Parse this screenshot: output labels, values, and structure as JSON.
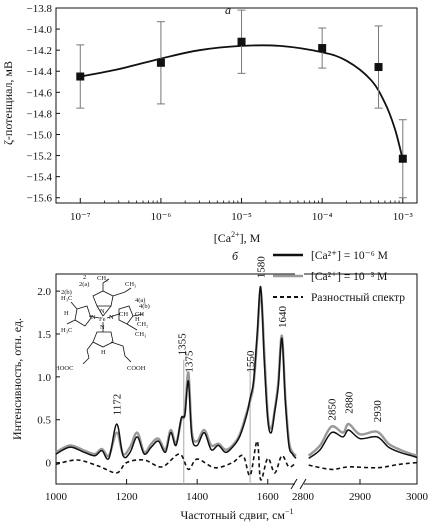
{
  "chart_data": [
    {
      "panel": "a",
      "type": "scatter",
      "xlabel": "[Ca2+], M",
      "ylabel": "ζ-потенциал, мВ",
      "xscale": "log",
      "xlim": [
        5e-08,
        0.0015
      ],
      "ylim": [
        -15.65,
        -13.8
      ],
      "x_ticks": [
        "10⁻⁷",
        "10⁻⁶",
        "10⁻⁵",
        "10⁻⁴",
        "10⁻³"
      ],
      "y_ticks": [
        "-13.8",
        "-14.0",
        "-14.2",
        "-14.4",
        "-14.6",
        "-14.8",
        "-15.0",
        "-15.2",
        "-15.4",
        "-15.6"
      ],
      "points": [
        {
          "x": 1e-07,
          "y": -14.45,
          "err": 0.3
        },
        {
          "x": 1e-06,
          "y": -14.32,
          "err": 0.39
        },
        {
          "x": 1e-05,
          "y": -14.12,
          "err": 0.3
        },
        {
          "x": 0.0001,
          "y": -14.18,
          "err": 0.19
        },
        {
          "x": 0.0005,
          "y": -14.36,
          "err": 0.39
        },
        {
          "x": 0.001,
          "y": -15.23,
          "err": 0.37
        }
      ],
      "fit_curve": {
        "x": [
          1e-07,
          3e-07,
          1e-06,
          3e-06,
          1e-05,
          3e-05,
          0.0001,
          0.0002,
          0.0004,
          0.0006,
          0.0008,
          0.001
        ],
        "y": [
          -14.45,
          -14.38,
          -14.28,
          -14.2,
          -14.16,
          -14.16,
          -14.22,
          -14.3,
          -14.48,
          -14.7,
          -14.95,
          -15.24
        ]
      }
    },
    {
      "panel": "б",
      "type": "line",
      "xlabel": "Частотный сдвиг, см⁻¹",
      "ylabel": "Интенсивность, отн. ед.",
      "ylim": [
        -0.25,
        2.2
      ],
      "x_ticks_left": [
        "1000",
        "1200",
        "1400",
        "1600",
        "2800"
      ],
      "x_ticks_right": [
        "2900",
        "3000"
      ],
      "y_ticks": [
        "0",
        "0.5",
        "1.0",
        "1.5",
        "2.0"
      ],
      "series": [
        {
          "name": "[Ca²⁺] = 10⁻⁶ M",
          "color": "#111111",
          "x_left": [
            1000,
            1040,
            1080,
            1110,
            1130,
            1150,
            1172,
            1190,
            1210,
            1230,
            1250,
            1270,
            1290,
            1310,
            1325,
            1340,
            1355,
            1365,
            1375,
            1385,
            1400,
            1420,
            1440,
            1460,
            1480,
            1500,
            1520,
            1540,
            1550,
            1560,
            1570,
            1580,
            1590,
            1600,
            1610,
            1620,
            1630,
            1640,
            1650,
            1660,
            1670,
            1680
          ],
          "y_left": [
            0.1,
            0.18,
            0.12,
            0.08,
            0.14,
            0.05,
            0.45,
            0.08,
            0.12,
            0.3,
            0.1,
            0.18,
            0.25,
            0.12,
            0.35,
            0.2,
            0.52,
            0.55,
            0.95,
            0.3,
            0.2,
            0.35,
            0.15,
            0.2,
            0.12,
            0.18,
            0.3,
            0.55,
            0.75,
            0.95,
            1.5,
            2.05,
            1.2,
            0.5,
            0.35,
            0.6,
            0.9,
            1.45,
            0.7,
            0.2,
            0.1,
            0.05
          ],
          "x_right": [
            2810,
            2830,
            2850,
            2870,
            2880,
            2900,
            2930,
            2950,
            2970,
            2990,
            3000
          ],
          "y_right": [
            0.05,
            0.15,
            0.35,
            0.3,
            0.38,
            0.28,
            0.3,
            0.18,
            0.12,
            0.08,
            0.06
          ]
        },
        {
          "name": "[Ca²⁺] = 10⁻³ M",
          "color": "#999999",
          "x_left": [
            1000,
            1040,
            1080,
            1110,
            1130,
            1150,
            1172,
            1190,
            1210,
            1230,
            1250,
            1270,
            1290,
            1310,
            1325,
            1340,
            1355,
            1365,
            1375,
            1385,
            1400,
            1420,
            1440,
            1460,
            1480,
            1500,
            1520,
            1540,
            1550,
            1560,
            1570,
            1580,
            1590,
            1600,
            1610,
            1620,
            1630,
            1640,
            1650,
            1660,
            1670,
            1680
          ],
          "y_left": [
            0.12,
            0.2,
            0.14,
            0.1,
            0.16,
            0.08,
            0.35,
            0.1,
            0.18,
            0.35,
            0.12,
            0.22,
            0.28,
            0.15,
            0.38,
            0.22,
            0.5,
            0.58,
            1.05,
            0.35,
            0.25,
            0.38,
            0.2,
            0.22,
            0.15,
            0.2,
            0.32,
            0.58,
            0.72,
            0.92,
            1.45,
            2.0,
            1.3,
            0.55,
            0.4,
            0.62,
            0.95,
            1.48,
            0.75,
            0.25,
            0.12,
            0.08
          ],
          "x_right": [
            2810,
            2830,
            2850,
            2870,
            2880,
            2900,
            2930,
            2950,
            2970,
            2990,
            3000
          ],
          "y_right": [
            0.08,
            0.2,
            0.42,
            0.35,
            0.45,
            0.33,
            0.36,
            0.22,
            0.15,
            0.1,
            0.08
          ]
        },
        {
          "name": "Разностный спектр",
          "color": "#111111",
          "dashed": true,
          "x_left": [
            1000,
            1060,
            1120,
            1172,
            1200,
            1250,
            1300,
            1350,
            1375,
            1400,
            1450,
            1500,
            1530,
            1550,
            1570,
            1580,
            1600,
            1620,
            1640,
            1660,
            1680
          ],
          "y_left": [
            -0.02,
            0.03,
            -0.04,
            -0.12,
            0.0,
            0.03,
            -0.05,
            0.1,
            -0.08,
            0.04,
            -0.06,
            0.0,
            0.08,
            -0.15,
            0.25,
            -0.2,
            0.05,
            -0.12,
            0.08,
            -0.05,
            0.0
          ],
          "x_right": [
            2810,
            2850,
            2880,
            2930,
            2970,
            3000
          ],
          "y_right": [
            -0.03,
            -0.08,
            -0.05,
            -0.06,
            -0.02,
            0.0
          ]
        }
      ],
      "peak_labels": [
        "1172",
        "1355",
        "1375",
        "1550",
        "1580",
        "1640",
        "2850",
        "2880",
        "2930"
      ]
    }
  ],
  "labels": {
    "panel_a": "a",
    "panel_b": "б",
    "a_ylabel": "ζ-потенциал, мВ",
    "a_xlabel_prefix": "[Ca",
    "a_xlabel_sup": "2+",
    "a_xlabel_suffix": "], M",
    "b_ylabel": "Интенсивность, отн. ед.",
    "b_xlabel": "Частотный сдвиг, см",
    "b_xlabel_sup": "−1",
    "legend_1": "[Ca²⁺] = 10⁻⁶ M",
    "legend_2": "[Ca²⁺] = 10⁻³ M",
    "legend_3": "Разностный спектр"
  },
  "molecule_labels": {
    "ch2_top": "CH₂",
    "num_2": "2",
    "num_2a": "2(a)",
    "num_2b": "2(b)",
    "vinyl_r": "4(a)",
    "vinyl_r2": "4(b)",
    "ch_r": "CH",
    "ch3_top": "CH₃",
    "h3c_left": "H₃C",
    "ch3_left": "H₃C",
    "meso_h": "H",
    "meso_h2": "H",
    "meso_h3": "H",
    "ch_r2": "CH",
    "ch2_r": "CH₂",
    "fe": "Fe",
    "n1": "N",
    "n2": "N",
    "n3": "N",
    "n4": "N",
    "ch3_right": "CH₃",
    "hooc": "HOOC",
    "cooh": "COOH"
  }
}
